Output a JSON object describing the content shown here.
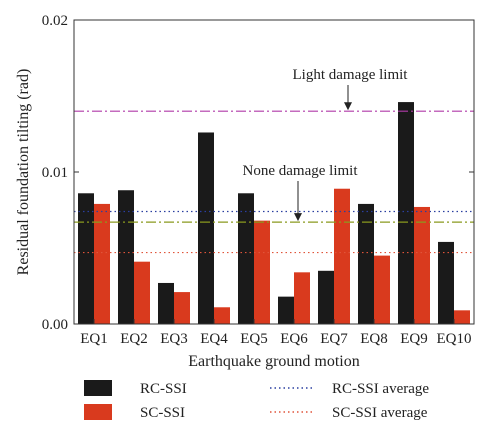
{
  "chart_data": {
    "type": "bar",
    "categories": [
      "EQ1",
      "EQ2",
      "EQ3",
      "EQ4",
      "EQ5",
      "EQ6",
      "EQ7",
      "EQ8",
      "EQ9",
      "EQ10"
    ],
    "series": [
      {
        "name": "RC-SSI",
        "color": "#1a1a1a",
        "values": [
          0.0086,
          0.0088,
          0.0027,
          0.0126,
          0.0086,
          0.0018,
          0.0035,
          0.0079,
          0.0146,
          0.0054
        ]
      },
      {
        "name": "SC-SSI",
        "color": "#d93a1e",
        "values": [
          0.0079,
          0.0041,
          0.0021,
          0.0011,
          0.0068,
          0.0034,
          0.0089,
          0.0045,
          0.0077,
          0.0009
        ]
      }
    ],
    "xlabel": "Earthquake ground motion",
    "ylabel": "Residual foundation tilting (rad)",
    "ylim": [
      0.0,
      0.02
    ],
    "yticks": [
      0.0,
      0.01,
      0.02
    ],
    "ytick_labels": [
      "0.00",
      "0.01",
      "0.02"
    ],
    "reference_lines": [
      {
        "label": "Light damage limit",
        "value": 0.014,
        "color": "#b03aa8",
        "style": "dash-dot"
      },
      {
        "label": "None damage limit",
        "value": 0.0067,
        "color": "#8a9a1e",
        "style": "dash-dot"
      },
      {
        "label": "RC-SSI average",
        "value": 0.0074,
        "color": "#2a3fa0",
        "style": "dotted"
      },
      {
        "label": "SC-SSI average",
        "value": 0.0047,
        "color": "#e0543a",
        "style": "dotted"
      }
    ],
    "annotations": [
      {
        "text": "Light damage limit",
        "target": 0.014
      },
      {
        "text": "None damage limit",
        "target": 0.0067
      }
    ],
    "grid": false,
    "legend": {
      "placement": "bottom",
      "items": [
        {
          "label": "RC-SSI",
          "kind": "bar",
          "color": "#1a1a1a"
        },
        {
          "label": "SC-SSI",
          "kind": "bar",
          "color": "#d93a1e"
        },
        {
          "label": "RC-SSI average",
          "kind": "line",
          "color": "#2a3fa0"
        },
        {
          "label": "SC-SSI average",
          "kind": "line",
          "color": "#e0543a"
        }
      ]
    }
  }
}
